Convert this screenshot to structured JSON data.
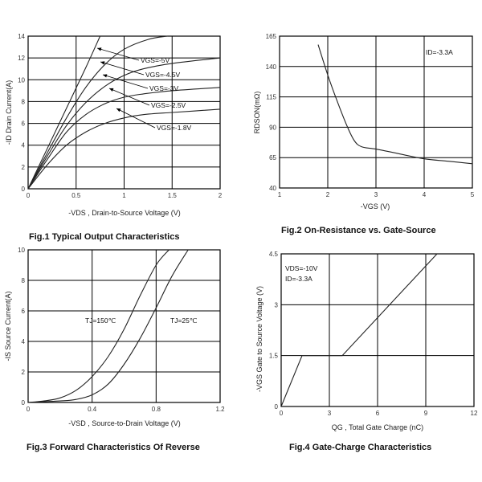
{
  "chart_data": [
    {
      "type": "line",
      "caption": "Fig.1 Typical Output Characteristics",
      "xlabel": "-VDS , Drain-to-Source Voltage (V)",
      "ylabel": "-ID Drain Current(A)",
      "xlim": [
        0,
        2
      ],
      "ylim": [
        0,
        14
      ],
      "xticks": [
        "0",
        "0.5",
        "1",
        "1.5",
        "2"
      ],
      "yticks": [
        "0",
        "2",
        "4",
        "6",
        "8",
        "10",
        "12",
        "14"
      ],
      "series": [
        {
          "name": "VGS=-5V",
          "x": [
            0,
            0.2,
            0.4,
            0.6,
            0.75
          ],
          "y": [
            0,
            3.7,
            7.4,
            11.1,
            14
          ]
        },
        {
          "name": "VGS=-4.5V",
          "x": [
            0,
            0.2,
            0.4,
            0.6,
            0.8,
            1.0,
            1.25,
            1.45
          ],
          "y": [
            0,
            3.3,
            6.5,
            9.3,
            11.4,
            12.8,
            13.7,
            14
          ]
        },
        {
          "name": "VGS=-3V",
          "x": [
            0,
            0.2,
            0.4,
            0.6,
            0.8,
            1.0,
            1.2,
            1.5,
            2.0
          ],
          "y": [
            0,
            3.0,
            5.8,
            7.9,
            9.4,
            10.4,
            11.0,
            11.5,
            12.0
          ]
        },
        {
          "name": "VGS=-2.5V",
          "x": [
            0,
            0.2,
            0.4,
            0.6,
            0.8,
            1.0,
            1.2,
            1.5,
            2.0
          ],
          "y": [
            0,
            2.7,
            5.2,
            6.8,
            7.8,
            8.4,
            8.7,
            9.0,
            9.3
          ]
        },
        {
          "name": "VGS=-1.8V",
          "x": [
            0,
            0.2,
            0.4,
            0.6,
            0.8,
            1.0,
            1.2,
            1.5,
            2.0
          ],
          "y": [
            0,
            2.2,
            4.0,
            5.2,
            6.0,
            6.5,
            6.8,
            7.0,
            7.3
          ]
        }
      ],
      "legend_labels": [
        "VGS=-5V",
        "VGS=-4.5V",
        "VGS=-3V",
        "VGS=-2.5V",
        "VGS=-1.8V"
      ]
    },
    {
      "type": "line",
      "caption": "Fig.2 On-Resistance vs. Gate-Source",
      "xlabel": "-VGS (V)",
      "ylabel": "RDSON(mΩ)",
      "xlim": [
        1,
        5
      ],
      "ylim": [
        40,
        165
      ],
      "xticks": [
        "1",
        "2",
        "3",
        "4",
        "5"
      ],
      "yticks": [
        "40",
        "65",
        "90",
        "115",
        "140",
        "165"
      ],
      "annotation": "ID=-3.3A",
      "series": [
        {
          "name": "",
          "x": [
            1.8,
            2.0,
            2.2,
            2.4,
            2.55,
            2.7,
            3.0,
            3.5,
            4.0,
            4.5,
            5.0
          ],
          "y": [
            158,
            133,
            111,
            91,
            79,
            74,
            72,
            68,
            64,
            62,
            60
          ]
        }
      ]
    },
    {
      "type": "line",
      "caption": "Fig.3 Forward Characteristics Of Reverse",
      "xlabel": "-VSD , Source-to-Drain Voltage (V)",
      "ylabel": "-IS Source Current(A)",
      "xlim": [
        0,
        1.2
      ],
      "ylim": [
        0,
        10
      ],
      "xticks": [
        "0",
        "0.4",
        "0.8",
        "1.2"
      ],
      "yticks": [
        "0",
        "2",
        "4",
        "6",
        "8",
        "10"
      ],
      "series": [
        {
          "name": "TJ=150℃",
          "x": [
            0,
            0.1,
            0.2,
            0.3,
            0.4,
            0.5,
            0.6,
            0.7,
            0.8,
            0.88
          ],
          "y": [
            0,
            0.1,
            0.3,
            0.8,
            1.7,
            3.0,
            4.8,
            7.0,
            9.0,
            10
          ]
        },
        {
          "name": "TJ=25℃",
          "x": [
            0,
            0.2,
            0.3,
            0.4,
            0.5,
            0.6,
            0.7,
            0.8,
            0.9,
            1.0
          ],
          "y": [
            0,
            0.1,
            0.2,
            0.5,
            1.2,
            2.5,
            4.2,
            6.2,
            8.3,
            10
          ]
        }
      ]
    },
    {
      "type": "line",
      "caption": "Fig.4 Gate-Charge Characteristics",
      "xlabel": "QG , Total Gate Charge (nC)",
      "ylabel": "-VGS Gate to Source Voltage (V)",
      "xlim": [
        0,
        12
      ],
      "ylim": [
        0,
        4.5
      ],
      "xticks": [
        "0",
        "3",
        "6",
        "9",
        "12"
      ],
      "yticks": [
        "0",
        "1.5",
        "3",
        "4.5"
      ],
      "annotations": [
        "VDS=-10V",
        "ID=-3.3A"
      ],
      "series": [
        {
          "name": "",
          "x": [
            0,
            1.3,
            3.8,
            9.7
          ],
          "y": [
            0,
            1.5,
            1.5,
            4.5
          ]
        }
      ]
    }
  ]
}
